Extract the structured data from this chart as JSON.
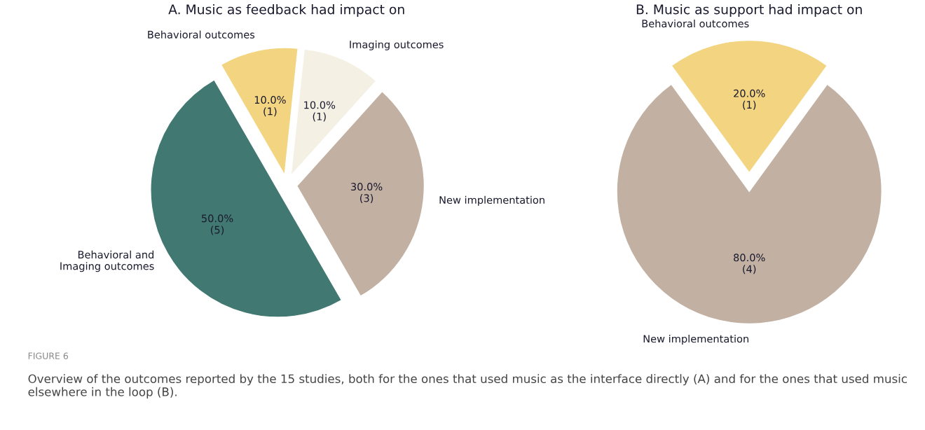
{
  "chart_data": [
    {
      "type": "pie",
      "title": "A. Music as feedback had impact on",
      "categories": [
        "Behavioral outcomes",
        "Imaging outcomes",
        "New implementation",
        "Behavioral and\nImaging outcomes"
      ],
      "values": [
        10,
        10,
        30,
        50
      ],
      "colors": [
        "#f2d481",
        "#f4f0e4",
        "#c2b1a3",
        "#417871"
      ],
      "value_labels": [
        "10.0%\n(1)",
        "10.0%\n(1)",
        "30.0%\n(3)",
        "50.0%\n(5)"
      ],
      "legend": false
    },
    {
      "type": "pie",
      "title": "B. Music as support had impact on",
      "categories": [
        "Behavioral outcomes",
        "New implementation"
      ],
      "values": [
        20,
        80
      ],
      "colors": [
        "#f2d481",
        "#c2b1a3"
      ],
      "value_labels": [
        "20.0%\n(1)",
        "80.0%\n(4)"
      ],
      "legend": false,
      "annotations": [
        "FIGURE 6",
        "Overview of the outcomes reported by the 15 studies, both for the ones that used music as the interface directly (A) and for the ones that used music elsewhere in the loop (B)."
      ]
    }
  ]
}
